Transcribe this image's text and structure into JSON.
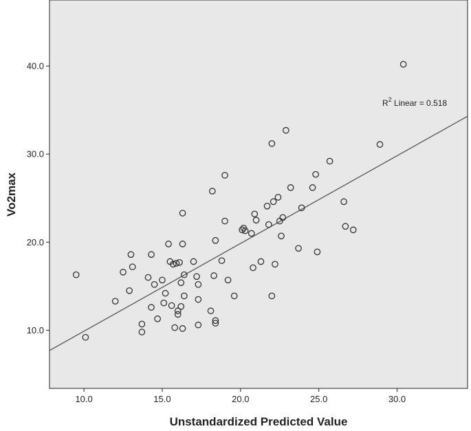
{
  "chart_data": {
    "type": "scatter",
    "title": "",
    "xlabel": "Unstandardized Predicted Value",
    "ylabel": "Vo2max",
    "xlim": [
      7.8,
      34.5
    ],
    "ylim": [
      3.4,
      47.5
    ],
    "xticks": [
      "10.0",
      "15.0",
      "20.0",
      "25.0",
      "30.0"
    ],
    "yticks": [
      "10.0",
      "20.0",
      "30.0",
      "40.0"
    ],
    "grid": false,
    "colors": {
      "plot_bg": "#e8e8e8",
      "marker": "#333333",
      "fit_line": "#555555"
    },
    "annotation": {
      "prefix": "R",
      "superscript": "2",
      "label": " Linear = 0.518"
    },
    "fit_line": {
      "x": [
        7.8,
        34.5
      ],
      "y": [
        7.7,
        34.3
      ]
    },
    "points": [
      [
        9.5,
        16.3
      ],
      [
        10.1,
        9.2
      ],
      [
        12.0,
        13.3
      ],
      [
        12.5,
        16.6
      ],
      [
        13.0,
        18.6
      ],
      [
        13.1,
        17.2
      ],
      [
        12.9,
        14.5
      ],
      [
        13.7,
        10.7
      ],
      [
        13.7,
        9.8
      ],
      [
        14.1,
        16.0
      ],
      [
        14.3,
        18.6
      ],
      [
        14.3,
        12.6
      ],
      [
        14.5,
        15.2
      ],
      [
        14.7,
        11.3
      ],
      [
        15.0,
        15.7
      ],
      [
        15.1,
        13.1
      ],
      [
        15.2,
        14.2
      ],
      [
        15.4,
        19.8
      ],
      [
        15.5,
        17.8
      ],
      [
        15.6,
        12.8
      ],
      [
        15.7,
        17.5
      ],
      [
        15.8,
        10.3
      ],
      [
        15.9,
        17.6
      ],
      [
        16.0,
        12.2
      ],
      [
        16.0,
        11.8
      ],
      [
        16.1,
        17.7
      ],
      [
        16.2,
        15.4
      ],
      [
        16.2,
        12.7
      ],
      [
        16.3,
        10.2
      ],
      [
        16.3,
        23.3
      ],
      [
        16.3,
        19.8
      ],
      [
        16.4,
        16.3
      ],
      [
        16.4,
        13.9
      ],
      [
        17.0,
        17.8
      ],
      [
        17.2,
        16.1
      ],
      [
        17.3,
        15.2
      ],
      [
        17.3,
        13.5
      ],
      [
        17.3,
        10.6
      ],
      [
        18.1,
        12.2
      ],
      [
        18.2,
        25.8
      ],
      [
        18.3,
        16.2
      ],
      [
        18.4,
        20.2
      ],
      [
        18.4,
        11.1
      ],
      [
        18.4,
        10.8
      ],
      [
        18.8,
        17.9
      ],
      [
        19.0,
        22.4
      ],
      [
        19.0,
        27.6
      ],
      [
        19.2,
        15.7
      ],
      [
        19.6,
        13.9
      ],
      [
        20.1,
        21.4
      ],
      [
        20.2,
        21.6
      ],
      [
        20.3,
        21.3
      ],
      [
        20.7,
        21.0
      ],
      [
        20.8,
        17.1
      ],
      [
        20.9,
        23.2
      ],
      [
        21.0,
        22.5
      ],
      [
        21.3,
        17.8
      ],
      [
        21.7,
        24.1
      ],
      [
        21.8,
        22.0
      ],
      [
        22.0,
        31.2
      ],
      [
        22.1,
        24.6
      ],
      [
        22.0,
        13.9
      ],
      [
        22.2,
        17.5
      ],
      [
        22.4,
        25.1
      ],
      [
        22.5,
        22.4
      ],
      [
        22.6,
        20.7
      ],
      [
        22.7,
        22.8
      ],
      [
        22.9,
        32.7
      ],
      [
        23.2,
        26.2
      ],
      [
        23.7,
        19.3
      ],
      [
        23.9,
        23.9
      ],
      [
        24.6,
        26.2
      ],
      [
        24.8,
        27.7
      ],
      [
        24.9,
        18.9
      ],
      [
        25.7,
        29.2
      ],
      [
        26.6,
        24.6
      ],
      [
        26.7,
        21.8
      ],
      [
        27.2,
        21.4
      ],
      [
        28.9,
        31.1
      ],
      [
        30.4,
        40.2
      ]
    ]
  }
}
